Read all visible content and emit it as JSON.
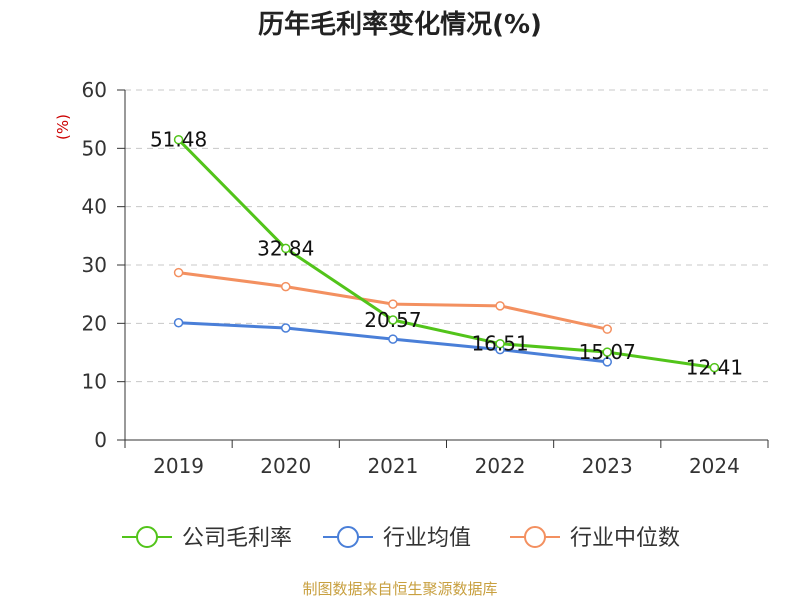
{
  "chart_data": {
    "type": "line",
    "title": "历年毛利率变化情况(%)",
    "ylabel": "(%)",
    "xlabel": "",
    "categories": [
      "2019",
      "2020",
      "2021",
      "2022",
      "2023",
      "2024"
    ],
    "ylim": [
      0,
      60
    ],
    "yticks": [
      0,
      10,
      20,
      30,
      40,
      50,
      60
    ],
    "grid": true,
    "legend_position": "bottom",
    "series": [
      {
        "name": "公司毛利率",
        "color": "#52c41a",
        "values": [
          51.48,
          32.84,
          20.57,
          16.51,
          15.07,
          12.41
        ],
        "data_labels": [
          "51.48",
          "32.84",
          "20.57",
          "16.51",
          "15.07",
          "12.41"
        ]
      },
      {
        "name": "行业均值",
        "color": "#4a7fd8",
        "values": [
          20.1,
          19.2,
          17.3,
          15.5,
          13.4,
          null
        ]
      },
      {
        "name": "行业中位数",
        "color": "#f39060",
        "values": [
          28.7,
          26.3,
          23.3,
          23.0,
          19.0,
          null
        ]
      }
    ]
  },
  "footer": {
    "source": "制图数据来自恒生聚源数据库"
  }
}
